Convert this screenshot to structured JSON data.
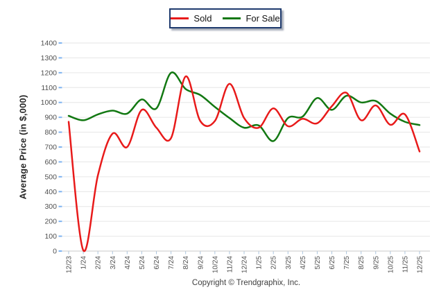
{
  "footer": {
    "copyright": "Copyright © Trendgraphix, Inc."
  },
  "chart_data": {
    "type": "line",
    "title": "",
    "xlabel": "",
    "ylabel": "Average Price (in $,000)",
    "ylim": [
      0,
      1400
    ],
    "y_ticks": [
      0,
      100,
      200,
      300,
      400,
      500,
      600,
      700,
      800,
      900,
      1000,
      1100,
      1200,
      1300,
      1400
    ],
    "grid": "horizontal",
    "legend_position": "top-center",
    "categories": [
      "12/23",
      "1/24",
      "2/24",
      "3/24",
      "4/24",
      "5/24",
      "6/24",
      "7/24",
      "8/24",
      "9/24",
      "10/24",
      "11/24",
      "12/24",
      "1/25",
      "2/25",
      "3/25",
      "4/25",
      "5/25",
      "6/25",
      "7/25",
      "8/25",
      "9/25",
      "10/25",
      "11/25",
      "12/25"
    ],
    "series": [
      {
        "name": "Sold",
        "color": "#e81a1a",
        "values": [
          870,
          5,
          510,
          790,
          700,
          950,
          830,
          760,
          1175,
          875,
          875,
          1125,
          895,
          830,
          960,
          840,
          890,
          860,
          975,
          1065,
          880,
          980,
          850,
          920,
          670
        ]
      },
      {
        "name": "For Sale",
        "color": "#127812",
        "values": [
          910,
          880,
          920,
          945,
          925,
          1020,
          960,
          1200,
          1090,
          1050,
          970,
          895,
          830,
          845,
          740,
          895,
          905,
          1030,
          950,
          1045,
          1000,
          1010,
          925,
          870,
          848
        ]
      }
    ],
    "style": {
      "gridline_color": "#e6e6e6",
      "baseline_color": "#c9c9c9",
      "y_tick_color": "#7eb3f0",
      "x_tick_color": "#a9c4de",
      "tick_label_color": "#4f4f4f"
    }
  }
}
